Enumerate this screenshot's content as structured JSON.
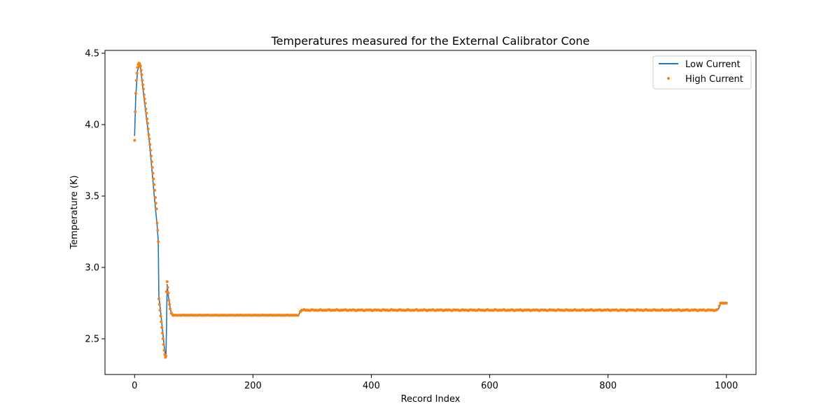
{
  "chart_data": {
    "type": "line",
    "title": "Temperatures measured for the External Calibrator Cone",
    "xlabel": "Record Index",
    "ylabel": "Temperature (K)",
    "xlim": [
      -50,
      1050
    ],
    "ylim": [
      2.25,
      4.52
    ],
    "xticks": [
      0,
      200,
      400,
      600,
      800,
      1000
    ],
    "yticks": [
      2.5,
      3.0,
      3.5,
      4.0,
      4.5
    ],
    "xtick_labels": [
      "0",
      "200",
      "400",
      "600",
      "800",
      "1000"
    ],
    "ytick_labels": [
      "2.5",
      "3.0",
      "3.5",
      "4.0",
      "4.5"
    ],
    "grid": false,
    "legend_position": "top-right",
    "colors": {
      "low": "#1f77b4",
      "high": "#ff7f0e"
    },
    "series": [
      {
        "name": "Low Current",
        "style": "line",
        "points": [
          [
            0,
            3.92
          ],
          [
            2,
            4.2
          ],
          [
            5,
            4.38
          ],
          [
            8,
            4.41
          ],
          [
            10,
            4.4
          ],
          [
            12,
            4.33
          ],
          [
            15,
            4.22
          ],
          [
            20,
            4.05
          ],
          [
            25,
            3.88
          ],
          [
            30,
            3.65
          ],
          [
            35,
            3.42
          ],
          [
            38,
            3.3
          ],
          [
            40,
            3.18
          ],
          [
            41,
            2.8
          ],
          [
            45,
            2.65
          ],
          [
            50,
            2.45
          ],
          [
            52,
            2.39
          ],
          [
            53,
            2.37
          ],
          [
            54,
            2.6
          ],
          [
            55,
            2.88
          ],
          [
            57,
            2.8
          ],
          [
            60,
            2.72
          ],
          [
            62,
            2.68
          ],
          [
            65,
            2.665
          ],
          [
            100,
            2.665
          ],
          [
            150,
            2.665
          ],
          [
            200,
            2.665
          ],
          [
            250,
            2.665
          ],
          [
            277,
            2.665
          ],
          [
            280,
            2.69
          ],
          [
            283,
            2.7
          ],
          [
            300,
            2.7
          ],
          [
            400,
            2.7
          ],
          [
            500,
            2.7
          ],
          [
            600,
            2.7
          ],
          [
            700,
            2.7
          ],
          [
            800,
            2.7
          ],
          [
            900,
            2.7
          ],
          [
            985,
            2.7
          ],
          [
            988,
            2.72
          ],
          [
            990,
            2.75
          ],
          [
            1000,
            2.75
          ]
        ]
      },
      {
        "name": "High Current",
        "style": "scatter",
        "points": [
          [
            0,
            3.89
          ],
          [
            1,
            4.09
          ],
          [
            2,
            4.22
          ],
          [
            3,
            4.31
          ],
          [
            4,
            4.36
          ],
          [
            5,
            4.4
          ],
          [
            6,
            4.42
          ],
          [
            7,
            4.43
          ],
          [
            8,
            4.43
          ],
          [
            9,
            4.42
          ],
          [
            10,
            4.41
          ],
          [
            11,
            4.38
          ],
          [
            12,
            4.35
          ],
          [
            13,
            4.31
          ],
          [
            14,
            4.28
          ],
          [
            15,
            4.25
          ],
          [
            16,
            4.21
          ],
          [
            17,
            4.18
          ],
          [
            18,
            4.15
          ],
          [
            19,
            4.11
          ],
          [
            20,
            4.08
          ],
          [
            21,
            4.04
          ],
          [
            22,
            4.01
          ],
          [
            23,
            3.97
          ],
          [
            24,
            3.93
          ],
          [
            25,
            3.9
          ],
          [
            26,
            3.86
          ],
          [
            27,
            3.82
          ],
          [
            28,
            3.78
          ],
          [
            29,
            3.74
          ],
          [
            30,
            3.7
          ],
          [
            31,
            3.66
          ],
          [
            32,
            3.62
          ],
          [
            33,
            3.58
          ],
          [
            34,
            3.54
          ],
          [
            35,
            3.49
          ],
          [
            36,
            3.45
          ],
          [
            37,
            3.41
          ],
          [
            38,
            3.31
          ],
          [
            39,
            3.26
          ],
          [
            40,
            3.18
          ],
          [
            41,
            2.78
          ],
          [
            42,
            2.74
          ],
          [
            43,
            2.7
          ],
          [
            44,
            2.66
          ],
          [
            45,
            2.62
          ],
          [
            46,
            2.58
          ],
          [
            47,
            2.54
          ],
          [
            48,
            2.5
          ],
          [
            49,
            2.46
          ],
          [
            50,
            2.42
          ],
          [
            51,
            2.39
          ],
          [
            52,
            2.37
          ],
          [
            53,
            2.38
          ],
          [
            54,
            2.83
          ],
          [
            55,
            2.9
          ],
          [
            56,
            2.86
          ],
          [
            57,
            2.82
          ],
          [
            58,
            2.77
          ],
          [
            59,
            2.74
          ],
          [
            60,
            2.71
          ],
          [
            62,
            2.68
          ],
          [
            64,
            2.67
          ],
          [
            65,
            2.665
          ],
          [
            280,
            2.69
          ],
          [
            282,
            2.7
          ],
          [
            988,
            2.73
          ],
          [
            990,
            2.75
          ],
          [
            992,
            2.75
          ],
          [
            994,
            2.75
          ],
          [
            996,
            2.75
          ],
          [
            998,
            2.75
          ],
          [
            1000,
            2.75
          ]
        ],
        "plateaus": [
          {
            "x_start": 66,
            "x_end": 278,
            "step": 2.5,
            "value": 2.665,
            "jitter": 0.001
          },
          {
            "x_start": 284,
            "x_end": 986,
            "step": 2.5,
            "value": 2.701,
            "jitter": 0.004
          }
        ]
      }
    ]
  }
}
